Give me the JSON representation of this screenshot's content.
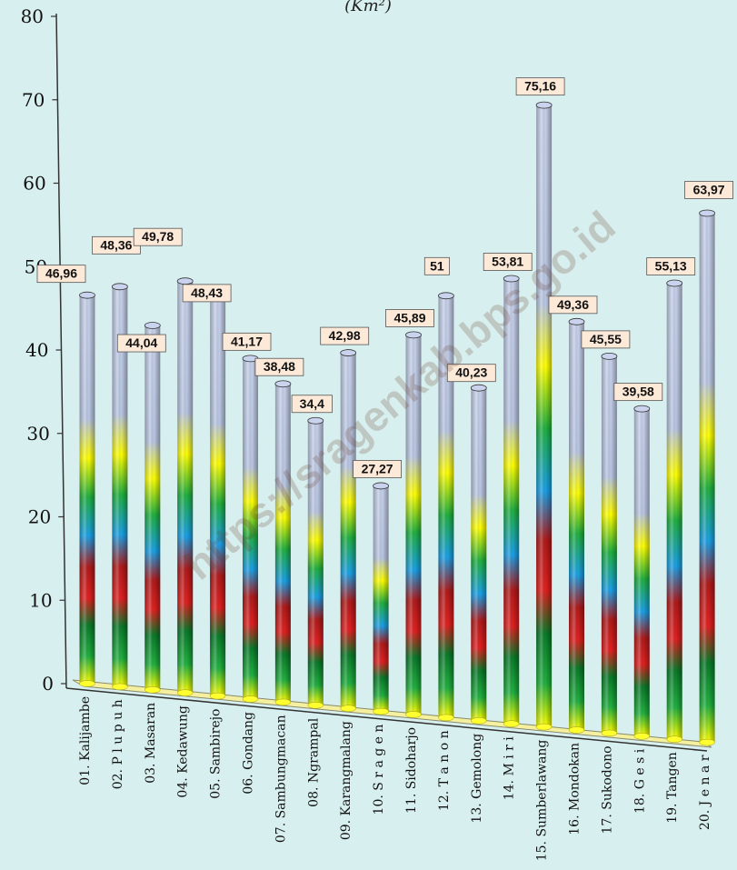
{
  "chart_data": {
    "type": "bar",
    "title_fragment": "(Km²)",
    "categories": [
      "01. Kalijambe",
      "02. P l u p u h",
      "03. Masaran",
      "04. Kedawung",
      "05. Sambirejo",
      "06. Gondang",
      "07. Sambungmacan",
      "08. Ngrampal",
      "09. Karangmalang",
      "10. S r a g e n",
      "11. Sidoharjo",
      "12. T a n o n",
      "13. Gemolong",
      "14. M i r i",
      "15. Sumberlawang",
      "16. Mondokan",
      "17. Sukodono",
      "18. G e s i",
      "19. Tangen",
      "20. J e n a r"
    ],
    "values": [
      46.96,
      48.36,
      44.04,
      49.78,
      48.43,
      41.17,
      38.48,
      34.4,
      42.98,
      27.27,
      45.89,
      51,
      40.23,
      53.81,
      75.16,
      49.36,
      45.55,
      39.58,
      55.13,
      63.97
    ],
    "value_labels": [
      "46,96",
      "48,36",
      "44,04",
      "49,78",
      "48,43",
      "41,17",
      "38,48",
      "34,4",
      "42,98",
      "27,27",
      "45,89",
      "51",
      "40,23",
      "53,81",
      "75,16",
      "49,36",
      "45,55",
      "39,58",
      "55,13",
      "63,97"
    ],
    "y_ticks": [
      "0",
      "10",
      "20",
      "30",
      "40",
      "50",
      "60",
      "70",
      "80"
    ],
    "ylim": [
      0,
      80
    ],
    "grid": false,
    "legend": "none",
    "watermark": "https://sragenkab.bps.go.id",
    "colors": {
      "background": "#d7efee",
      "cylinder_top": "#b9c6e2",
      "gradient": [
        "#ffff00",
        "#20b040",
        "#e02020",
        "#1aa0e6",
        "#ffff00"
      ],
      "label_box": "#fde9d8"
    }
  }
}
